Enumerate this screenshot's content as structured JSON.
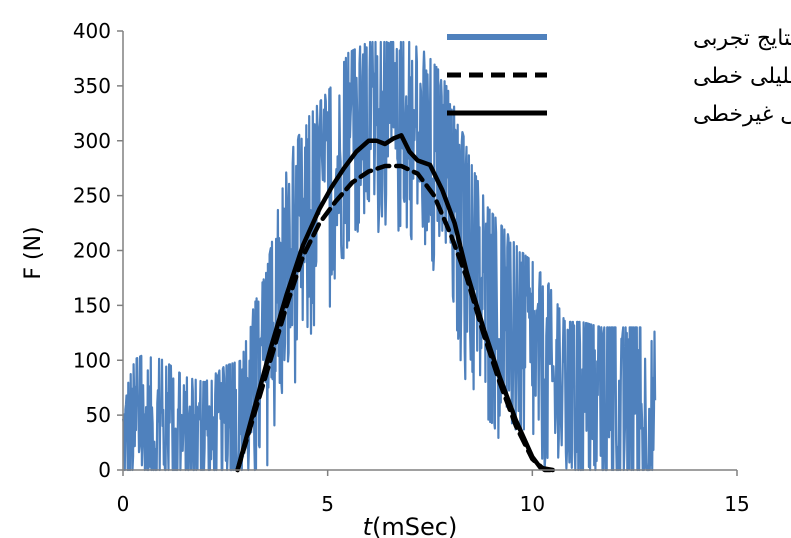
{
  "chart_data": {
    "type": "line",
    "xlabel_italic": "t",
    "xlabel_rest": "(mSec)",
    "ylabel": "F (N)",
    "xlim": [
      0,
      15
    ],
    "ylim": [
      0,
      400
    ],
    "xticks": [
      "0",
      "5",
      "10",
      "15"
    ],
    "yticks": [
      "0",
      "50",
      "100",
      "150",
      "200",
      "250",
      "300",
      "350",
      "400"
    ],
    "grid": false,
    "legend_position": "top-right",
    "series": [
      {
        "name": "نتایج تجربی",
        "style": "noisy-solid",
        "color": "#4f81bd",
        "x": [
          0,
          0.5,
          1,
          1.5,
          2,
          2.5,
          2.9,
          3.2,
          3.5,
          3.8,
          4.1,
          4.5,
          4.9,
          5.2,
          5.5,
          6,
          6.5,
          7,
          7.4,
          7.8,
          8.2,
          8.5,
          8.9,
          9.3,
          9.7,
          10,
          10.4,
          10.8,
          11.2,
          11.7,
          12.2,
          12.6,
          13.0
        ],
        "y": [
          25,
          35,
          30,
          25,
          20,
          25,
          30,
          60,
          90,
          140,
          180,
          210,
          230,
          265,
          290,
          300,
          300,
          300,
          290,
          260,
          210,
          170,
          140,
          120,
          110,
          100,
          80,
          55,
          45,
          40,
          40,
          40,
          40
        ],
        "band": [
          70,
          70,
          70,
          60,
          60,
          70,
          70,
          90,
          90,
          100,
          110,
          110,
          110,
          90,
          90,
          90,
          90,
          90,
          90,
          100,
          110,
          110,
          100,
          100,
          90,
          90,
          90,
          80,
          90,
          90,
          90,
          90,
          90
        ]
      },
      {
        "name": "نتایج تحلیلی خطی",
        "style": "dashed",
        "color": "#000000",
        "x": [
          2.8,
          3.2,
          3.6,
          4.0,
          4.4,
          4.8,
          5.2,
          5.6,
          6.0,
          6.4,
          6.8,
          7.2,
          7.6,
          8.0,
          8.4,
          8.8,
          9.2,
          9.6,
          10.0,
          10.3,
          10.5
        ],
        "y": [
          0,
          50,
          100,
          150,
          195,
          225,
          245,
          262,
          272,
          277,
          277,
          270,
          250,
          215,
          175,
          125,
          80,
          40,
          10,
          0,
          0
        ]
      },
      {
        "name": "نتایج تحلیلی غیرخطی",
        "style": "solid",
        "color": "#000000",
        "x": [
          2.8,
          3.2,
          3.6,
          4.0,
          4.4,
          4.8,
          5.1,
          5.4,
          5.7,
          6.0,
          6.2,
          6.4,
          6.6,
          6.8,
          7.0,
          7.2,
          7.5,
          7.8,
          8.1,
          8.4,
          8.8,
          9.2,
          9.6,
          10.0,
          10.2,
          10.5
        ],
        "y": [
          0,
          55,
          110,
          160,
          205,
          238,
          258,
          275,
          290,
          300,
          300,
          297,
          302,
          305,
          290,
          282,
          278,
          255,
          225,
          180,
          130,
          85,
          45,
          12,
          2,
          0
        ]
      }
    ]
  }
}
